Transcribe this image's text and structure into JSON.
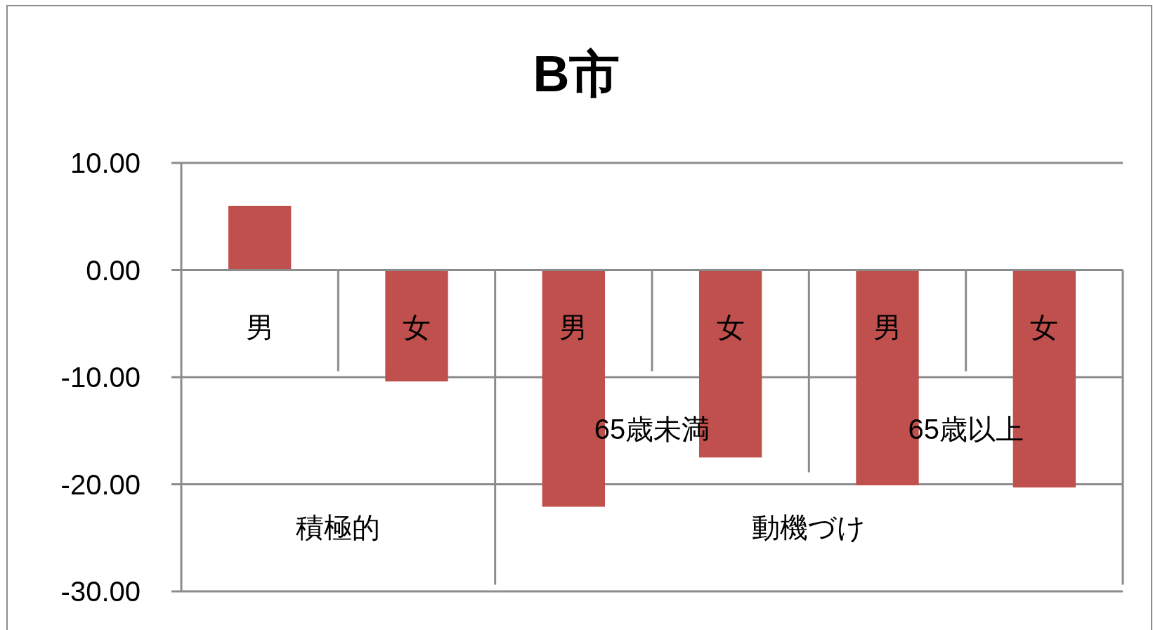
{
  "chart_data": {
    "type": "bar",
    "title": "B市",
    "categories": [
      "男",
      "女",
      "男",
      "女",
      "男",
      "女"
    ],
    "values": [
      6.0,
      -10.4,
      -22.1,
      -17.5,
      -20.1,
      -20.3
    ],
    "color": "#c0504d",
    "ylim": [
      -30,
      10
    ],
    "yticks": [
      {
        "value": -30,
        "label": "-30.00"
      },
      {
        "value": -20,
        "label": "-20.00"
      },
      {
        "value": -10,
        "label": "-10.00"
      },
      {
        "value": 0,
        "label": "0.00"
      },
      {
        "value": 10,
        "label": "10.00"
      }
    ],
    "grid": "y",
    "annotations": [
      "65歳未満",
      "65歳以上",
      "積極的",
      "動機づけ"
    ]
  }
}
